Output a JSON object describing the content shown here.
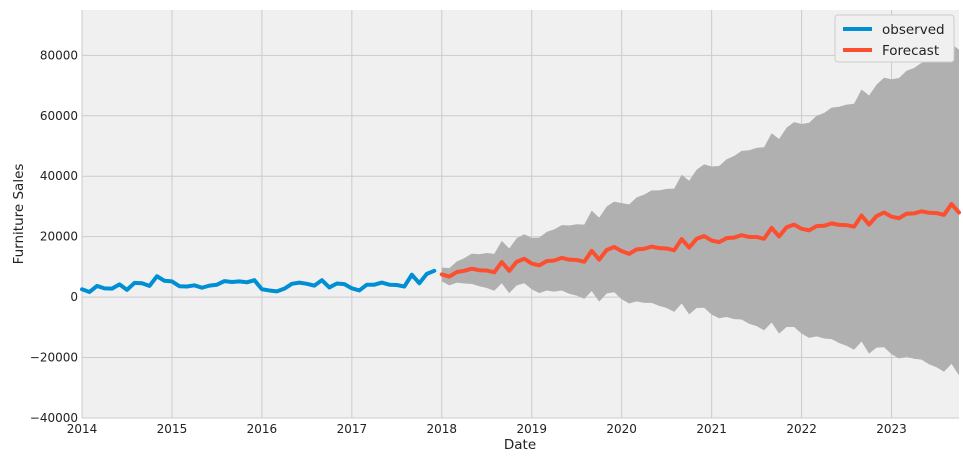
{
  "chart_data": {
    "type": "line",
    "title": "",
    "xlabel": "Date",
    "ylabel": "Furniture Sales",
    "xlim": [
      "2014-01",
      "2023-10"
    ],
    "ylim": [
      -40000,
      95000
    ],
    "x_ticks": [
      "2014",
      "2015",
      "2016",
      "2017",
      "2018",
      "2019",
      "2020",
      "2021",
      "2022",
      "2023"
    ],
    "y_ticks": [
      -40000,
      -20000,
      0,
      20000,
      40000,
      60000,
      80000
    ],
    "grid": true,
    "legend": "top-right",
    "colors": {
      "background": "#f0f0f0",
      "grid": "#cbcbcb",
      "observed": "#008fd5",
      "forecast": "#fc4f30",
      "interval": "#b0b0b0"
    },
    "observed": {
      "name": "observed",
      "x": [
        "2014-01",
        "2014-02",
        "2014-03",
        "2014-04",
        "2014-05",
        "2014-06",
        "2014-07",
        "2014-08",
        "2014-09",
        "2014-10",
        "2014-11",
        "2014-12",
        "2015-01",
        "2015-02",
        "2015-03",
        "2015-04",
        "2015-05",
        "2015-06",
        "2015-07",
        "2015-08",
        "2015-09",
        "2015-10",
        "2015-11",
        "2015-12",
        "2016-01",
        "2016-02",
        "2016-03",
        "2016-04",
        "2016-05",
        "2016-06",
        "2016-07",
        "2016-08",
        "2016-09",
        "2016-10",
        "2016-11",
        "2016-12",
        "2017-01",
        "2017-02",
        "2017-03",
        "2017-04",
        "2017-05",
        "2017-06",
        "2017-07",
        "2017-08",
        "2017-09",
        "2017-10",
        "2017-11",
        "2017-12"
      ],
      "values": [
        2600,
        1700,
        3700,
        2900,
        2800,
        4200,
        2400,
        4700,
        4600,
        3700,
        6900,
        5400,
        5200,
        3600,
        3500,
        3900,
        3100,
        3800,
        4100,
        5300,
        5000,
        5200,
        4900,
        5600,
        2600,
        2200,
        1900,
        2800,
        4400,
        4800,
        4400,
        3800,
        5600,
        3200,
        4500,
        4300,
        2900,
        2200,
        4100,
        4100,
        4800,
        4100,
        4000,
        3500,
        7400,
        4600,
        7700,
        8700
      ]
    },
    "forecast": {
      "name": "Forecast",
      "x": [
        "2018-01",
        "2018-02",
        "2018-03",
        "2018-04",
        "2018-05",
        "2018-06",
        "2018-07",
        "2018-08",
        "2018-09",
        "2018-10",
        "2018-11",
        "2018-12",
        "2019-01",
        "2019-02",
        "2019-03",
        "2019-04",
        "2019-05",
        "2019-06",
        "2019-07",
        "2019-08",
        "2019-09",
        "2019-10",
        "2019-11",
        "2019-12",
        "2020-01",
        "2020-02",
        "2020-03",
        "2020-04",
        "2020-05",
        "2020-06",
        "2020-07",
        "2020-08",
        "2020-09",
        "2020-10",
        "2020-11",
        "2020-12",
        "2021-01",
        "2021-02",
        "2021-03",
        "2021-04",
        "2021-05",
        "2021-06",
        "2021-07",
        "2021-08",
        "2021-09",
        "2021-10",
        "2021-11",
        "2021-12",
        "2022-01",
        "2022-02",
        "2022-03",
        "2022-04",
        "2022-05",
        "2022-06",
        "2022-07",
        "2022-08",
        "2022-09",
        "2022-10",
        "2022-11",
        "2022-12",
        "2023-01",
        "2023-02",
        "2023-03",
        "2023-04",
        "2023-05",
        "2023-06",
        "2023-07",
        "2023-08",
        "2023-09",
        "2023-10"
      ],
      "values": [
        7500,
        6800,
        8300,
        8700,
        9400,
        8900,
        8800,
        8200,
        11600,
        8700,
        11700,
        12700,
        11100,
        10500,
        11900,
        12100,
        13000,
        12400,
        12300,
        11700,
        15300,
        12400,
        15600,
        16600,
        15200,
        14300,
        15800,
        16000,
        16700,
        16200,
        16100,
        15500,
        19200,
        16400,
        19300,
        20200,
        18700,
        18200,
        19500,
        19700,
        20500,
        19900,
        19900,
        19300,
        22900,
        20100,
        23100,
        24000,
        22600,
        22100,
        23500,
        23600,
        24400,
        23900,
        23800,
        23300,
        27000,
        24000,
        26800,
        28000,
        26600,
        26100,
        27600,
        27700,
        28400,
        27900,
        27800,
        27200,
        30800,
        28000
      ]
    },
    "interval": {
      "upper": [
        9800,
        9600,
        11800,
        12900,
        14400,
        14200,
        14600,
        14300,
        18600,
        16100,
        19500,
        20800,
        19600,
        19700,
        21600,
        22400,
        23800,
        23700,
        24100,
        24000,
        28600,
        26300,
        30000,
        31600,
        31100,
        30700,
        33000,
        33900,
        35300,
        35300,
        35800,
        35900,
        40500,
        38500,
        42200,
        43900,
        43200,
        43400,
        45600,
        46700,
        48400,
        48600,
        49400,
        49600,
        54200,
        52300,
        56100,
        57900,
        57300,
        57700,
        60000,
        60900,
        62700,
        63000,
        63700,
        64000,
        68700,
        66700,
        70300,
        72600,
        72100,
        72500,
        74900,
        75800,
        77500,
        78000,
        78800,
        79100,
        83700,
        81900
      ],
      "lower": [
        5200,
        3900,
        4800,
        4500,
        4400,
        3600,
        3000,
        2100,
        4600,
        1300,
        3900,
        4600,
        2600,
        1300,
        2200,
        1800,
        2200,
        1100,
        500,
        -600,
        2000,
        -1500,
        1200,
        1600,
        -700,
        -2100,
        -1400,
        -1900,
        -1900,
        -2900,
        -3600,
        -4900,
        -2100,
        -5700,
        -3600,
        -3500,
        -5800,
        -7000,
        -6600,
        -7300,
        -7400,
        -8800,
        -9600,
        -11000,
        -8400,
        -12100,
        -9900,
        -9900,
        -12100,
        -13500,
        -13000,
        -13700,
        -13900,
        -15200,
        -16100,
        -17400,
        -14700,
        -18700,
        -16700,
        -16600,
        -18900,
        -20300,
        -19700,
        -20400,
        -20700,
        -22200,
        -23200,
        -24700,
        -22100,
        -25900
      ]
    }
  }
}
